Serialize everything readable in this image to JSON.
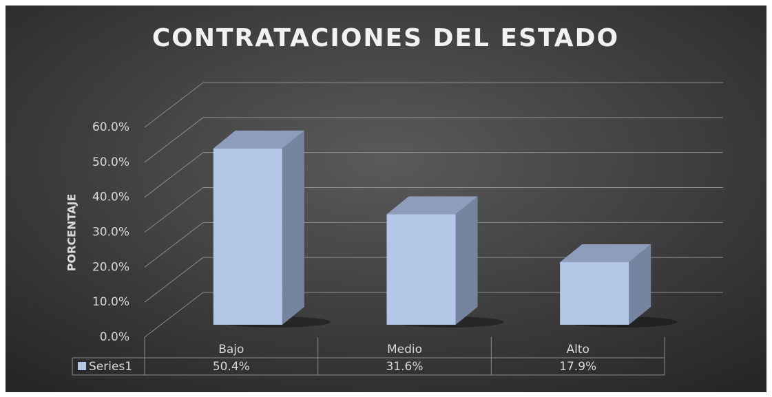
{
  "chart_data": {
    "type": "bar3d",
    "title": "CONTRATACIONES DEL ESTADO",
    "y_label": "PORCENTAJE",
    "categories": [
      "Bajo",
      "Medio",
      "Alto"
    ],
    "series": [
      {
        "name": "Series1",
        "color": "#b4c7e7",
        "values": [
          50.4,
          31.6,
          17.9
        ],
        "value_labels": [
          "50.4%",
          "31.6%",
          "17.9%"
        ]
      }
    ],
    "ylim": [
      0,
      60
    ],
    "yticks": [
      {
        "value": 0,
        "label": "0.0%"
      },
      {
        "value": 10,
        "label": "10.0%"
      },
      {
        "value": 20,
        "label": "20.0%"
      },
      {
        "value": 30,
        "label": "30.0%"
      },
      {
        "value": 40,
        "label": "40.0%"
      },
      {
        "value": 50,
        "label": "50.0%"
      },
      {
        "value": 60,
        "label": "60.0%"
      }
    ],
    "grid": true
  }
}
